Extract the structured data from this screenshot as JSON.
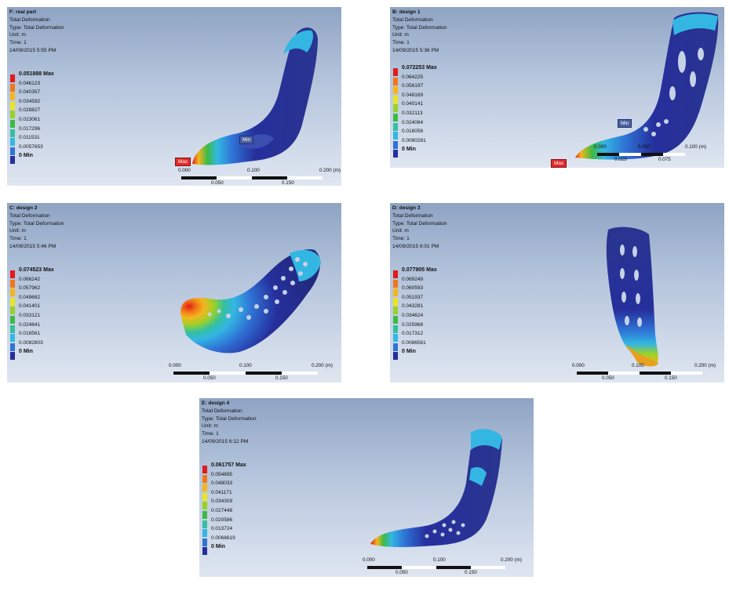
{
  "panels": [
    {
      "id": "F",
      "title": "F: real part",
      "lines": [
        "Total Deformation",
        "Type: Total Deformation",
        "Unit: m",
        "Time: 1",
        "14/09/2015 5:55 PM"
      ],
      "legend": [
        "0.051888 Max",
        "0.046123",
        "0.040357",
        "0.034592",
        "0.028827",
        "0.023061",
        "0.017296",
        "0.011531",
        "0.0057653",
        "0 Min"
      ],
      "scale_top": [
        "0.000",
        "0.100",
        "0.200 (m)"
      ],
      "scale_bottom": [
        "0.050",
        "0.150"
      ],
      "tags": [
        "Max",
        "Min"
      ]
    },
    {
      "id": "B",
      "title": "B: design 1",
      "lines": [
        "Total Deformation",
        "Type: Total Deformation",
        "Unit: m",
        "Time: 1",
        "14/09/2015 5:36 PM"
      ],
      "legend": [
        "0.072253 Max",
        "0.064225",
        "0.056197",
        "0.048169",
        "0.040141",
        "0.032113",
        "0.024084",
        "0.016056",
        "0.0080281",
        "0 Min"
      ],
      "scale_top": [
        "0.000",
        "0.050",
        "0.100 (m)"
      ],
      "scale_bottom": [
        "0.025",
        "0.075"
      ],
      "tags": [
        "Max",
        "Min"
      ]
    },
    {
      "id": "C",
      "title": "C: design 2",
      "lines": [
        "Total Deformation",
        "Type: Total Deformation",
        "Unit: m",
        "Time: 1",
        "14/09/2015 5:46 PM"
      ],
      "legend": [
        "0.074523 Max",
        "0.066242",
        "0.057962",
        "0.049682",
        "0.041401",
        "0.033121",
        "0.024841",
        "0.016561",
        "0.0082803",
        "0 Min"
      ],
      "scale_top": [
        "0.000",
        "0.100",
        "0.200 (m)"
      ],
      "scale_bottom": [
        "0.050",
        "0.150"
      ],
      "tags": []
    },
    {
      "id": "D",
      "title": "D: design 3",
      "lines": [
        "Total Deformation",
        "Type: Total Deformation",
        "Unit: m",
        "Time: 1",
        "14/09/2015 6:01 PM"
      ],
      "legend": [
        "0.077905 Max",
        "0.069249",
        "0.060593",
        "0.051937",
        "0.043281",
        "0.034624",
        "0.025968",
        "0.017312",
        "0.0086561",
        "0 Min"
      ],
      "scale_top": [
        "0.000",
        "0.100",
        "0.200 (m)"
      ],
      "scale_bottom": [
        "0.050",
        "0.150"
      ],
      "tags": []
    },
    {
      "id": "E",
      "title": "E: design 4",
      "lines": [
        "Total Deformation",
        "Type: Total Deformation",
        "Unit: m",
        "Time: 1",
        "14/09/2015 6:12 PM"
      ],
      "legend": [
        "0.061757 Max",
        "0.054895",
        "0.048033",
        "0.041171",
        "0.034309",
        "0.027448",
        "0.020586",
        "0.013724",
        "0.0068619",
        "0 Min"
      ],
      "scale_top": [
        "0.000",
        "0.100",
        "0.200 (m)"
      ],
      "scale_bottom": [
        "0.050",
        "0.150"
      ],
      "tags": []
    }
  ],
  "legend_colors": [
    "#e21b1b",
    "#f07818",
    "#f5b51e",
    "#ebe521",
    "#9ad128",
    "#3cba46",
    "#34bfa2",
    "#33b7e2",
    "#2f73d6",
    "#262f9c"
  ]
}
